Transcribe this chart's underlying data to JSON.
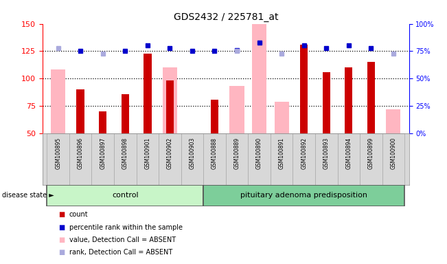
{
  "title": "GDS2432 / 225781_at",
  "samples": [
    "GSM100895",
    "GSM100896",
    "GSM100897",
    "GSM100898",
    "GSM100901",
    "GSM100902",
    "GSM100903",
    "GSM100888",
    "GSM100889",
    "GSM100890",
    "GSM100891",
    "GSM100892",
    "GSM100893",
    "GSM100894",
    "GSM100899",
    "GSM100900"
  ],
  "control_count": 7,
  "ylim_left": [
    50,
    150
  ],
  "ylim_right": [
    0,
    100
  ],
  "red_bars": [
    null,
    90,
    70,
    86,
    123,
    98,
    null,
    81,
    null,
    null,
    null,
    131,
    106,
    110,
    115,
    null
  ],
  "pink_bars": [
    108,
    null,
    null,
    null,
    null,
    110,
    null,
    null,
    93,
    150,
    79,
    null,
    null,
    null,
    null,
    72
  ],
  "blue_markers_pct": [
    null,
    75,
    null,
    75,
    80,
    78,
    75,
    75,
    76,
    83,
    null,
    80,
    78,
    80,
    78,
    null
  ],
  "lightblue_markers_pct": [
    78,
    null,
    73,
    null,
    null,
    null,
    null,
    null,
    75,
    null,
    73,
    null,
    null,
    null,
    null,
    73
  ],
  "group_labels": [
    "control",
    "pituitary adenoma predisposition"
  ],
  "group_light_color": "#c8f5c8",
  "group_dark_color": "#7dce9a",
  "red_color": "#cc0000",
  "pink_color": "#ffb6c1",
  "blue_color": "#0000cc",
  "lightblue_color": "#aaaadd",
  "legend_items": [
    "count",
    "percentile rank within the sample",
    "value, Detection Call = ABSENT",
    "rank, Detection Call = ABSENT"
  ],
  "disease_state_label": "disease state ►"
}
